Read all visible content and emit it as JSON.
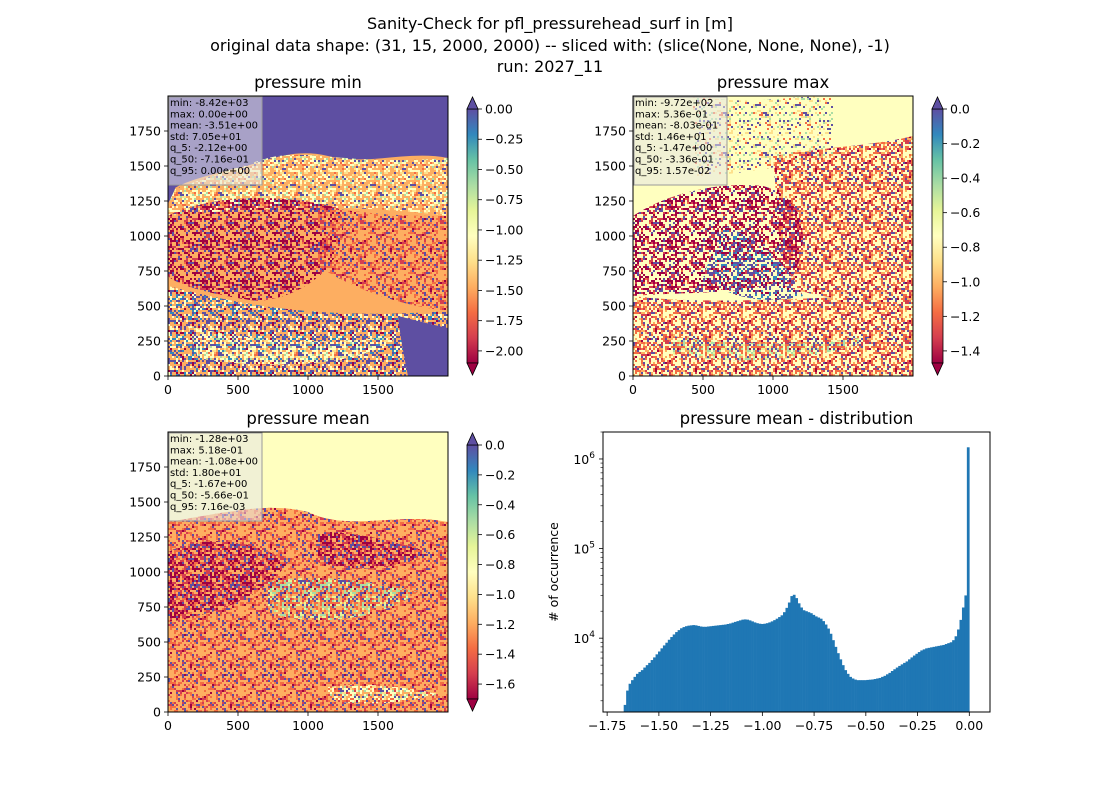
{
  "figure": {
    "suptitle_lines": [
      "Sanity-Check for pfl_pressurehead_surf in [m]",
      "original data shape: (31, 15, 2000, 2000) -- sliced with: (slice(None, None, None), -1)",
      "run: 2027_11"
    ]
  },
  "colormap": {
    "name": "Spectral",
    "stops": [
      "#9e0142",
      "#d53e4f",
      "#f46d43",
      "#fdae61",
      "#fee08b",
      "#ffffbf",
      "#e6f598",
      "#abdda4",
      "#66c2a5",
      "#3288bd",
      "#5e4fa2"
    ],
    "over_color": "#5e4fa2",
    "under_color": "#9e0142"
  },
  "chart_data": [
    {
      "type": "heatmap",
      "title": "pressure min",
      "xlim": [
        0,
        2000
      ],
      "ylim": [
        0,
        2000
      ],
      "x_ticks": [
        "0",
        "500",
        "1000",
        "1500"
      ],
      "y_ticks": [
        "0",
        "250",
        "500",
        "750",
        "1000",
        "1250",
        "1500",
        "1750"
      ],
      "colorbar": {
        "range": [
          -2.1,
          0.0
        ],
        "extend": "both",
        "tick_values": [
          0.0,
          -0.25,
          -0.5,
          -0.75,
          -1.0,
          -1.25,
          -1.5,
          -1.75,
          -2.0
        ],
        "tick_labels": [
          "0.00",
          "−0.25",
          "−0.50",
          "−0.75",
          "−1.00",
          "−1.25",
          "−1.50",
          "−1.75",
          "−2.00"
        ]
      },
      "stats": [
        "min: -8.42e+03",
        "max: 0.00e+00",
        "mean: -3.51e+00",
        "std: 7.05e+01",
        "q_5: -2.12e+00",
        "q_50: -7.16e-01",
        "q_95: 0.00e+00"
      ]
    },
    {
      "type": "heatmap",
      "title": "pressure max",
      "xlim": [
        0,
        2000
      ],
      "ylim": [
        0,
        2000
      ],
      "x_ticks": [
        "0",
        "500",
        "1000",
        "1500"
      ],
      "y_ticks": [
        "0",
        "250",
        "500",
        "750",
        "1000",
        "1250",
        "1500",
        "1750"
      ],
      "colorbar": {
        "range": [
          -1.47,
          0.0
        ],
        "extend": "both",
        "tick_values": [
          0.0,
          -0.2,
          -0.4,
          -0.6,
          -0.8,
          -1.0,
          -1.2,
          -1.4
        ],
        "tick_labels": [
          "0.0",
          "−0.2",
          "−0.4",
          "−0.6",
          "−0.8",
          "−1.0",
          "−1.2",
          "−1.4"
        ]
      },
      "stats": [
        "min: -9.72e+02",
        "max: 5.36e-01",
        "mean: -8.03e-01",
        "std: 1.46e+01",
        "q_5: -1.47e+00",
        "q_50: -3.36e-01",
        "q_95: 1.57e-02"
      ]
    },
    {
      "type": "heatmap",
      "title": "pressure mean",
      "xlim": [
        0,
        2000
      ],
      "ylim": [
        0,
        2000
      ],
      "x_ticks": [
        "0",
        "500",
        "1000",
        "1500"
      ],
      "y_ticks": [
        "0",
        "250",
        "500",
        "750",
        "1000",
        "1250",
        "1500",
        "1750"
      ],
      "colorbar": {
        "range": [
          -1.7,
          0.0
        ],
        "extend": "both",
        "tick_values": [
          0.0,
          -0.2,
          -0.4,
          -0.6,
          -0.8,
          -1.0,
          -1.2,
          -1.4,
          -1.6
        ],
        "tick_labels": [
          "0.0",
          "−0.2",
          "−0.4",
          "−0.6",
          "−0.8",
          "−1.0",
          "−1.2",
          "−1.4",
          "−1.6"
        ]
      },
      "stats": [
        "min: -1.28e+03",
        "max: 5.18e-01",
        "mean: -1.08e+00",
        "std: 1.80e+01",
        "q_5: -1.67e+00",
        "q_50: -5.66e-01",
        "q_95: 7.16e-03"
      ]
    },
    {
      "type": "bar",
      "subtype": "histogram",
      "title": "pressure mean - distribution",
      "xlabel": "",
      "ylabel": "# of occurrence",
      "xlim": [
        -1.77,
        0.1
      ],
      "ylim": [
        1500,
        2000000
      ],
      "y_scale": "log",
      "x_ticks": [
        -1.75,
        -1.5,
        -1.25,
        -1.0,
        -0.75,
        -0.5,
        -0.25,
        0.0
      ],
      "x_tick_labels": [
        "−1.75",
        "−1.50",
        "−1.25",
        "−1.00",
        "−0.75",
        "−0.50",
        "−0.25",
        "0.00"
      ],
      "y_ticks": [
        10000,
        100000,
        1000000
      ],
      "y_tick_labels": [
        [
          "10",
          "4"
        ],
        [
          "10",
          "5"
        ],
        [
          "10",
          "6"
        ]
      ],
      "bar_color": "#1f77b4",
      "bins": {
        "start": -1.67,
        "end": 0.0
      },
      "counts": [
        1800,
        2600,
        3100,
        3400,
        3700,
        4000,
        4200,
        4400,
        4700,
        5000,
        5300,
        5700,
        6100,
        6600,
        7100,
        7700,
        8300,
        8900,
        9600,
        10300,
        11000,
        11700,
        12300,
        12900,
        13300,
        13600,
        13800,
        13900,
        14000,
        13900,
        13700,
        13500,
        13400,
        13400,
        13500,
        13600,
        13700,
        13800,
        13900,
        14000,
        14100,
        14200,
        14400,
        14600,
        14900,
        15200,
        15500,
        15800,
        16100,
        16200,
        16100,
        15800,
        15400,
        15000,
        14700,
        14500,
        14400,
        14500,
        14700,
        15000,
        15400,
        15900,
        16500,
        17200,
        18000,
        19500,
        21800,
        25000,
        29500,
        30500,
        28000,
        24500,
        22000,
        20500,
        20000,
        19500,
        19000,
        18200,
        17500,
        17000,
        16500,
        15500,
        14200,
        12800,
        11200,
        9500,
        8000,
        6800,
        5800,
        5000,
        4400,
        4000,
        3700,
        3550,
        3450,
        3400,
        3400,
        3400,
        3400,
        3420,
        3440,
        3460,
        3500,
        3550,
        3600,
        3700,
        3800,
        3950,
        4100,
        4300,
        4500,
        4700,
        4900,
        5100,
        5300,
        5500,
        5800,
        6100,
        6400,
        6700,
        7000,
        7300,
        7500,
        7700,
        7800,
        7900,
        8000,
        8100,
        8200,
        8300,
        8400,
        8600,
        8800,
        9000,
        9500,
        10500,
        12500,
        16000,
        22000,
        30000,
        1350000
      ]
    }
  ]
}
